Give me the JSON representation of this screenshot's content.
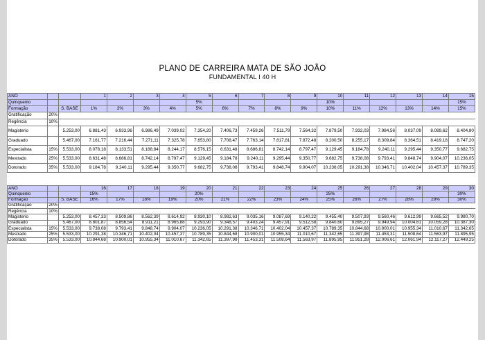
{
  "title": "PLANO DE CARREIRA MATA DE SÃO JOÃO",
  "subtitle": "FUNDAMENTAL I 40 H",
  "tables": [
    {
      "ano_label": "ANO",
      "anos": [
        "1",
        "2",
        "3",
        "4",
        "5",
        "6",
        "7",
        "8",
        "9",
        "10",
        "11",
        "12",
        "13",
        "14",
        "15"
      ],
      "quinquenio_label": "Quinquenio",
      "quinquenios": [
        "",
        "",
        "",
        "",
        "5%",
        "",
        "",
        "",
        "",
        "10%",
        "",
        "",
        "",
        "",
        "15%"
      ],
      "formacao_label": "Formação",
      "sbase_label": "S. BASE",
      "formacoes": [
        "1%",
        "2%",
        "3%",
        "4%",
        "5%",
        "6%",
        "7%",
        "8%",
        "9%",
        "10%",
        "11%",
        "12%",
        "13%",
        "14%",
        "15%"
      ],
      "gratificacao_label": "Gratificação",
      "gratificacao_pct": "20%",
      "regencia_label": "Regência",
      "regencia_pct": "10%",
      "rows": [
        {
          "label": "Magisterio",
          "pct": "",
          "base": "5.253,00",
          "values": [
            "6.881,43",
            "6.933,96",
            "6.986,49",
            "7.039,02",
            "7.354,20",
            "7.406,73",
            "7.459,26",
            "7.511,79",
            "7.564,32",
            "7.879,50",
            "7.932,03",
            "7.984,56",
            "8.037,09",
            "8.089,62",
            "8.404,80"
          ]
        },
        {
          "label": "Graduado",
          "pct": "",
          "base": "5.467,00",
          "values": [
            "7.161,77",
            "7.216,44",
            "7.271,11",
            "7.325,78",
            "7.653,80",
            "7.708,47",
            "7.763,14",
            "7.817,81",
            "7.872,48",
            "8.200,50",
            "8.255,17",
            "8.309,84",
            "8.364,51",
            "8.419,18",
            "8.747,20"
          ]
        },
        {
          "label": "Especialista",
          "pct": "15%",
          "base": "5.533,00",
          "values": [
            "8.078,18",
            "8.133,51",
            "8.188,84",
            "8.244,17",
            "8.576,15",
            "8.631,48",
            "8.686,81",
            "8.742,14",
            "8.797,47",
            "9.129,45",
            "9.184,78",
            "9.240,11",
            "9.295,44",
            "9.350,77",
            "9.682,75"
          ]
        },
        {
          "label": "Mestrado",
          "pct": "25%",
          "base": "5.533,00",
          "values": [
            "8.631,48",
            "8.686,81",
            "8.742,14",
            "8.797,47",
            "9.129,45",
            "9.184,78",
            "9.240,11",
            "9.295,44",
            "9.350,77",
            "9.682,75",
            "9.738,08",
            "9.793,41",
            "9.848,74",
            "9.904,07",
            "10.236,05"
          ]
        },
        {
          "label": "Dotorado",
          "pct": "35%",
          "base": "5.533,00",
          "values": [
            "9.184,78",
            "9.240,11",
            "9.295,44",
            "9.350,77",
            "9.682,75",
            "9.738,08",
            "9.793,41",
            "9.848,74",
            "9.904,07",
            "10.236,05",
            "10.291,38",
            "10.346,71",
            "10.402,04",
            "10.457,37",
            "10.789,35"
          ]
        }
      ]
    },
    {
      "ano_label": "ANO",
      "anos": [
        "16",
        "17",
        "18",
        "19",
        "20",
        "21",
        "22",
        "23",
        "24",
        "25",
        "26",
        "27",
        "28",
        "29",
        "30"
      ],
      "quinquenio_label": "Quinquenio",
      "quinquenios": [
        "15%",
        "",
        "",
        "",
        "20%",
        "",
        "",
        "",
        "",
        "25%",
        "",
        "",
        "",
        "",
        "30%"
      ],
      "formacao_label": "Formação",
      "sbase_label": "S. BASE",
      "formacoes": [
        "16%",
        "17%",
        "18%",
        "19%",
        "20%",
        "21%",
        "22%",
        "23%",
        "24%",
        "25%",
        "26%",
        "27%",
        "28%",
        "29%",
        "30%"
      ],
      "gratificacao_label": "Gratificação",
      "gratificacao_pct": "20%",
      "regencia_label": "Regência",
      "regencia_pct": "10%",
      "rows": [
        {
          "label": "Magisterio",
          "pct": "",
          "base": "5.253,00",
          "values": [
            "8.457,33",
            "8.509,86",
            "8.562,39",
            "8.614,92",
            "8.930,10",
            "8.982,63",
            "9.035,16",
            "9.087,69",
            "9.140,22",
            "9.455,40",
            "9.507,93",
            "9.560,46",
            "9.612,99",
            "9.665,52",
            "9.980,70"
          ]
        },
        {
          "label": "Graduado",
          "pct": "",
          "base": "5.467,00",
          "values": [
            "8.801,87",
            "8.856,54",
            "8.911,21",
            "8.965,88",
            "9.293,90",
            "9.348,57",
            "9.403,24",
            "9.457,91",
            "9.512,58",
            "9.840,60",
            "9.895,27",
            "9.949,94",
            "10.004,61",
            "10.059,28",
            "10.387,30"
          ]
        },
        {
          "label": "Especialista",
          "pct": "15%",
          "base": "5.533,00",
          "values": [
            "9.738,08",
            "9.793,41",
            "9.848,74",
            "9.904,07",
            "10.236,05",
            "10.291,38",
            "10.346,71",
            "10.402,04",
            "10.457,37",
            "10.789,35",
            "10.844,68",
            "10.900,01",
            "10.955,34",
            "11.010,67",
            "11.342,65"
          ]
        },
        {
          "label": "Mestrado",
          "pct": "25%",
          "base": "5.533,00",
          "values": [
            "10.291,38",
            "10.346,71",
            "10.402,04",
            "10.457,37",
            "10.789,35",
            "10.844,68",
            "10.900,01",
            "10.955,34",
            "11.010,67",
            "11.342,65",
            "11.397,98",
            "11.453,31",
            "11.508,64",
            "11.563,97",
            "11.895,95"
          ]
        },
        {
          "label": "Dotorado",
          "pct": "35%",
          "base": "5.533,00",
          "values": [
            "10.844,68",
            "10.900,01",
            "10.955,34",
            "11.010,67",
            "11.342,65",
            "11.397,98",
            "11.453,31",
            "11.508,64",
            "11.563,97",
            "11.895,95",
            "11.951,28",
            "12.006,61",
            "12.061,94",
            "12.117,27",
            "12.449,25"
          ]
        }
      ]
    }
  ]
}
